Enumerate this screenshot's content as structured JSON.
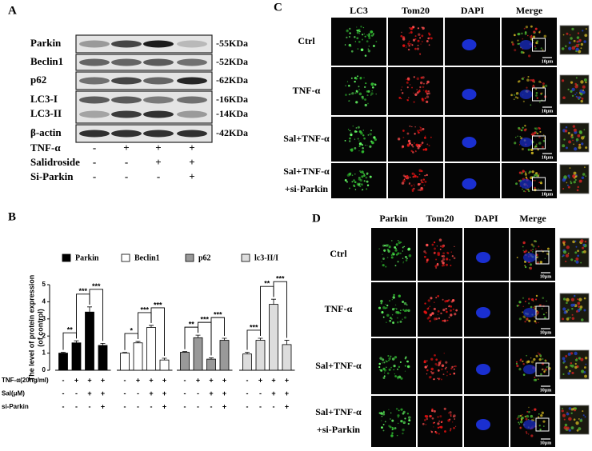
{
  "panel_a": {
    "label": "A",
    "proteins": [
      "Parkin",
      "Beclin1",
      "p62",
      "LC3-I",
      "LC3-II",
      "β-actin"
    ],
    "sizes": [
      "-55KDa",
      "-52KDa",
      "-62KDa",
      "-16KDa",
      "-14KDa",
      "-42KDa"
    ],
    "conditions": [
      {
        "name": "TNF-α",
        "signs": [
          "-",
          "+",
          "+",
          "+"
        ]
      },
      {
        "name": "Salidroside",
        "signs": [
          "-",
          "-",
          "+",
          "+"
        ]
      },
      {
        "name": "Si-Parkin",
        "signs": [
          "-",
          "-",
          "-",
          "+"
        ]
      }
    ]
  },
  "chart_data": {
    "type": "bar",
    "label": "B",
    "ylabel": [
      "The level of protein expression",
      "(of control)"
    ],
    "ylim": [
      0,
      5
    ],
    "yticks": [
      0,
      1,
      2,
      3,
      4,
      5
    ],
    "series": [
      {
        "name": "Parkin",
        "color": "#000000",
        "values": [
          1.0,
          1.6,
          3.4,
          1.45
        ],
        "errors": [
          0.05,
          0.12,
          0.3,
          0.12
        ],
        "significance": [
          "**",
          "***",
          "***"
        ]
      },
      {
        "name": "Beclin1",
        "color": "#ffffff",
        "values": [
          1.0,
          1.6,
          2.5,
          0.6
        ],
        "errors": [
          0.04,
          0.08,
          0.12,
          0.1
        ],
        "significance": [
          "*",
          "***",
          "***"
        ]
      },
      {
        "name": "p62",
        "color": "#999999",
        "values": [
          1.05,
          1.9,
          0.65,
          1.75
        ],
        "errors": [
          0.04,
          0.15,
          0.08,
          0.12
        ],
        "significance": [
          "**",
          "***",
          "***"
        ]
      },
      {
        "name": "lc3-II/I",
        "color": "#dddddd",
        "values": [
          0.95,
          1.75,
          3.85,
          1.5
        ],
        "errors": [
          0.1,
          0.12,
          0.3,
          0.25
        ],
        "significance": [
          "***",
          "**",
          "***"
        ]
      }
    ],
    "conditions": [
      {
        "name": "TNF-α(20ng/ml)",
        "signs": [
          "-",
          "+",
          "+",
          "+"
        ]
      },
      {
        "name": "Sal(μM)",
        "signs": [
          "-",
          "-",
          "+",
          "+"
        ]
      },
      {
        "name": "si-Parkin",
        "signs": [
          "-",
          "-",
          "-",
          "+"
        ]
      }
    ]
  },
  "panel_c": {
    "label": "C",
    "columns": [
      "LC3",
      "Tom20",
      "DAPI",
      "Merge"
    ],
    "rows": [
      [
        "Ctrl"
      ],
      [
        "TNF-α"
      ],
      [
        "Sal+TNF-α"
      ],
      [
        "Sal+TNF-α",
        "+si-Parkin"
      ]
    ],
    "scale_bar": "10μm"
  },
  "panel_d": {
    "label": "D",
    "columns": [
      "Parkin",
      "Tom20",
      "DAPI",
      "Merge"
    ],
    "rows": [
      [
        "Ctrl"
      ],
      [
        "TNF-α"
      ],
      [
        "Sal+TNF-α"
      ],
      [
        "Sal+TNF-α",
        "+si-Parkin"
      ]
    ],
    "scale_bar": "10μm"
  }
}
